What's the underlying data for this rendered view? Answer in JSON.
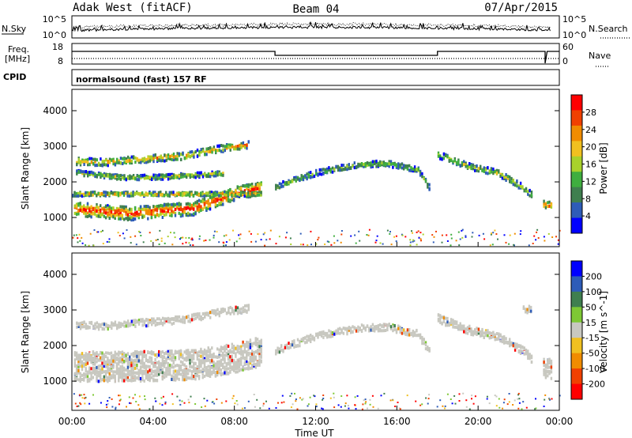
{
  "header": {
    "station": "Adak West (fitACF)",
    "beam": "Beam 04",
    "date": "07/Apr/2015"
  },
  "noise_panel": {
    "left_label": "N.Sky",
    "left_ticks": [
      "10^5",
      "10^0"
    ],
    "right_label": "N.Search",
    "right_ticks": [
      "10^5",
      "10^0"
    ]
  },
  "freq_panel": {
    "left_label_1": "Freq.",
    "left_label_2": "[MHz]",
    "left_ticks": [
      "18",
      "8"
    ],
    "right_label": "Nave",
    "right_ticks": [
      "60",
      "0"
    ]
  },
  "cpid_panel": {
    "label": "CPID",
    "text": "normalsound (fast) 157 RF"
  },
  "colors": {
    "power": [
      "#0000ff",
      "#2e5cb8",
      "#3f7f4f",
      "#3fae3f",
      "#a8d12b",
      "#f0c020",
      "#f08c00",
      "#f04000",
      "#ff0000"
    ],
    "velocity": [
      "#ff0000",
      "#f04000",
      "#f08c00",
      "#f0c020",
      "#c8c8c0",
      "#7ec834",
      "#3f7f4f",
      "#2e5cb8",
      "#0000ff"
    ],
    "ground_scatter": "#c8c8c0"
  },
  "chart_data": [
    {
      "type": "heatmap",
      "title": "Power",
      "xlabel": "",
      "ylabel": "Slant Range [km]",
      "x_ticks": [
        "00:00",
        "04:00",
        "08:00",
        "12:00",
        "16:00",
        "20:00",
        "00:00"
      ],
      "x_range_hours": [
        0,
        24
      ],
      "y_ticks": [
        1000,
        2000,
        3000,
        4000
      ],
      "ylim": [
        180,
        4600
      ],
      "colorbar": {
        "label": "Power [dB]",
        "ticks": [
          28,
          24,
          20,
          16,
          12,
          8,
          4
        ],
        "range": [
          0,
          32
        ]
      },
      "bands": [
        {
          "t": [
            0.1,
            2.8,
            6.0,
            8.0,
            9.3
          ],
          "center": [
            1280,
            1150,
            1300,
            1720,
            1870
          ],
          "width": 230,
          "level": 0.95
        },
        {
          "t": [
            0.0,
            9.3
          ],
          "center": [
            1700,
            1700
          ],
          "width": 70,
          "level": 0.7
        },
        {
          "t": [
            0.2,
            1.5,
            3.0,
            5.5,
            7.5,
            8.7
          ],
          "center": [
            2620,
            2590,
            2660,
            2770,
            3000,
            3080
          ],
          "width": 120,
          "level": 0.7
        },
        {
          "t": [
            0.2,
            2.5,
            4.5,
            6.0,
            7.4
          ],
          "center": [
            2300,
            2160,
            2180,
            2230,
            2280
          ],
          "width": 80,
          "level": 0.55
        },
        {
          "t": [
            10.0,
            12.0,
            14.0,
            15.5,
            17.0,
            17.6
          ],
          "center": [
            1900,
            2300,
            2520,
            2560,
            2380,
            1850
          ],
          "width": 100,
          "level": 0.45
        },
        {
          "t": [
            18.0,
            19.5,
            21.0,
            22.2,
            22.6
          ],
          "center": [
            2800,
            2480,
            2280,
            1880,
            1680
          ],
          "width": 110,
          "level": 0.55
        },
        {
          "t": [
            23.2,
            23.6
          ],
          "center": [
            1400,
            1380
          ],
          "width": 130,
          "level": 0.9
        }
      ]
    },
    {
      "type": "heatmap",
      "title": "Velocity",
      "xlabel": "Time UT",
      "ylabel": "Slant Range [km]",
      "x_ticks": [
        "00:00",
        "04:00",
        "08:00",
        "12:00",
        "16:00",
        "20:00",
        "00:00"
      ],
      "x_range_hours": [
        0,
        24
      ],
      "y_ticks": [
        1000,
        2000,
        3000,
        4000
      ],
      "ylim": [
        180,
        4600
      ],
      "colorbar": {
        "label": "Velocity [m s^-1]",
        "ticks": [
          200,
          100,
          50,
          15,
          -15,
          -50,
          -100,
          -200
        ],
        "range": [
          -250,
          250
        ]
      },
      "bands": [
        {
          "t": [
            0.1,
            2.8,
            6.0,
            8.0,
            9.3
          ],
          "center": [
            1450,
            1450,
            1500,
            1700,
            1870
          ],
          "width": 520,
          "level": 0.5
        },
        {
          "t": [
            0.2,
            1.5,
            3.0,
            5.5,
            7.5,
            8.7
          ],
          "center": [
            2620,
            2590,
            2660,
            2770,
            3000,
            3080
          ],
          "width": 120,
          "level": 0.5
        },
        {
          "t": [
            10.0,
            12.0,
            14.0,
            15.5,
            17.0,
            17.6
          ],
          "center": [
            1900,
            2300,
            2520,
            2560,
            2380,
            1850
          ],
          "width": 120,
          "level": 0.5
        },
        {
          "t": [
            18.0,
            19.5,
            21.0,
            22.2,
            22.6
          ],
          "center": [
            2800,
            2480,
            2280,
            1880,
            1680
          ],
          "width": 140,
          "level": 0.5
        },
        {
          "t": [
            22.2,
            22.6
          ],
          "center": [
            3050,
            3050
          ],
          "width": 120,
          "level": 0.5
        },
        {
          "t": [
            23.2,
            23.6
          ],
          "center": [
            1400,
            1380
          ],
          "width": 340,
          "level": 0.5
        }
      ]
    }
  ]
}
